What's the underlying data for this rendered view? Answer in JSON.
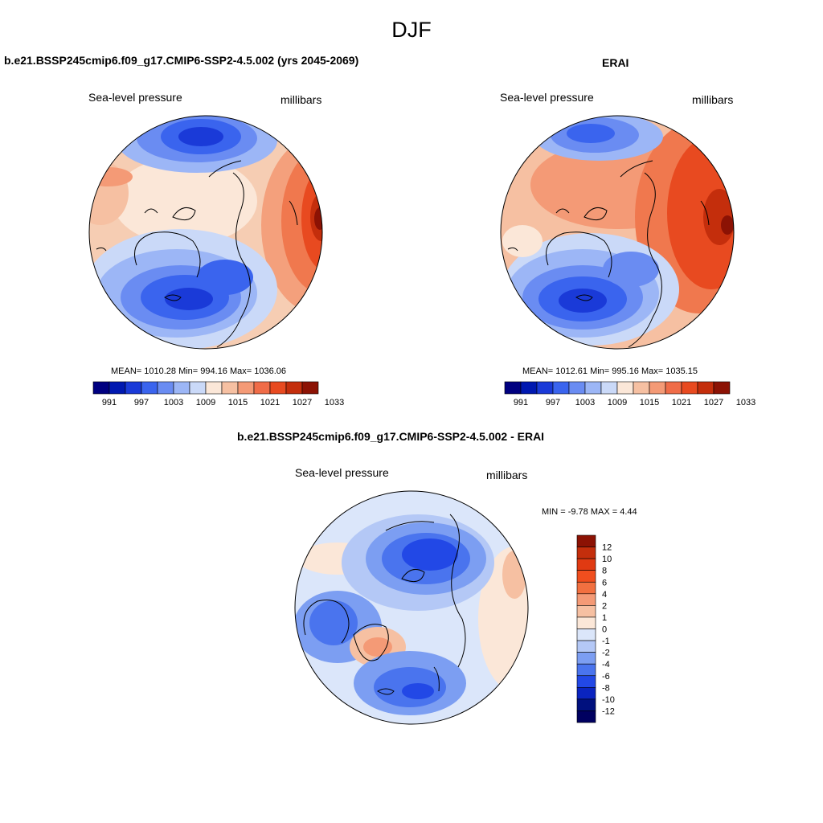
{
  "figure": {
    "season": "DJF"
  },
  "panels": [
    {
      "title": "b.e21.BSSP245cmip6.f09_g17.CMIP6-SSP2-4.5.002 (yrs 2045-2069)",
      "left_label": "Sea-level pressure",
      "right_label": "millibars",
      "stats": {
        "text": "MEAN= 1010.28  Min= 994.16  Max= 1036.06",
        "mean": 1010.28,
        "min": 994.16,
        "max": 1036.06
      }
    },
    {
      "title": "ERAI",
      "left_label": "Sea-level pressure",
      "right_label": "millibars",
      "stats": {
        "text": "MEAN= 1012.61  Min= 995.16  Max= 1035.15",
        "mean": 1012.61,
        "min": 995.16,
        "max": 1035.15
      }
    },
    {
      "title": "b.e21.BSSP245cmip6.f09_g17.CMIP6-SSP2-4.5.002 - ERAI",
      "left_label": "Sea-level pressure",
      "right_label": "millibars",
      "stats": {
        "text": "MIN =  -9.78 MAX =   4.44",
        "min": -9.78,
        "max": 4.44
      }
    }
  ],
  "abs_colorbar": {
    "ticks": [
      "991",
      "997",
      "1003",
      "1009",
      "1015",
      "1021",
      "1027",
      "1033"
    ],
    "colors": [
      "#000080",
      "#0018b0",
      "#1a3ad8",
      "#3a64ee",
      "#6a8cf2",
      "#9cb6f6",
      "#cad9f8",
      "#fbe7d8",
      "#f6c0a2",
      "#f49a76",
      "#f06c48",
      "#e84a20",
      "#c42e0c",
      "#8c1204"
    ]
  },
  "diff_colorbar": {
    "ticks": [
      "12",
      "10",
      "8",
      "6",
      "4",
      "2",
      "1",
      "0",
      "-1",
      "-2",
      "-4",
      "-6",
      "-8",
      "-10",
      "-12"
    ],
    "colors": [
      "#8c1204",
      "#c42e0c",
      "#e03a12",
      "#f04e1e",
      "#f27040",
      "#f49a76",
      "#f6c0a2",
      "#fbe7d8",
      "#dbe6fa",
      "#b4c8f6",
      "#7c9ef2",
      "#4a74ee",
      "#2248e6",
      "#0a24c0",
      "#00107e",
      "#000060"
    ]
  },
  "colors": {
    "land_outline": "#000000",
    "frame": "#000000",
    "background": "#ffffff"
  }
}
